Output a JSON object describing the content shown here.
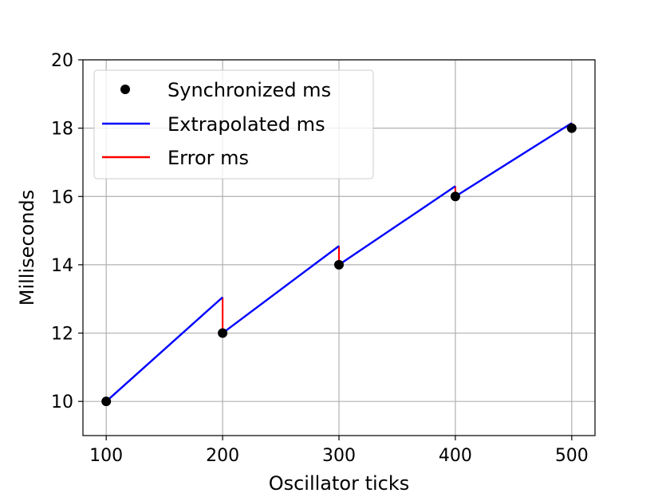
{
  "chart_data": {
    "type": "line",
    "xlabel": "Oscillator ticks",
    "ylabel": "Milliseconds",
    "xlim": [
      80,
      520
    ],
    "ylim": [
      9,
      20
    ],
    "xticks": [
      100,
      200,
      300,
      400,
      500
    ],
    "yticks": [
      10,
      12,
      14,
      16,
      18,
      20
    ],
    "xtick_labels": [
      "100",
      "200",
      "300",
      "400",
      "500"
    ],
    "ytick_labels": [
      "10",
      "12",
      "14",
      "16",
      "18",
      "20"
    ],
    "grid": true,
    "legend_position": "upper-left",
    "series": [
      {
        "name": "Synchronized ms",
        "kind": "scatter",
        "color": "#000000",
        "points": [
          [
            100,
            10
          ],
          [
            200,
            12
          ],
          [
            300,
            14
          ],
          [
            400,
            16
          ],
          [
            500,
            18
          ]
        ]
      },
      {
        "name": "Extrapolated ms",
        "kind": "line-segments",
        "color": "#0000ff",
        "segments": [
          [
            [
              100,
              10
            ],
            [
              200,
              13.05
            ]
          ],
          [
            [
              200,
              12
            ],
            [
              300,
              14.55
            ]
          ],
          [
            [
              300,
              14
            ],
            [
              400,
              16.3
            ]
          ],
          [
            [
              400,
              16
            ],
            [
              500,
              18.15
            ]
          ]
        ]
      },
      {
        "name": "Error ms",
        "kind": "vertical-segments",
        "color": "#ff0000",
        "segments": [
          [
            [
              200,
              12
            ],
            [
              200,
              13.05
            ]
          ],
          [
            [
              300,
              14
            ],
            [
              300,
              14.55
            ]
          ],
          [
            [
              400,
              16
            ],
            [
              400,
              16.3
            ]
          ],
          [
            [
              500,
              18
            ],
            [
              500,
              18.15
            ]
          ]
        ]
      }
    ]
  }
}
